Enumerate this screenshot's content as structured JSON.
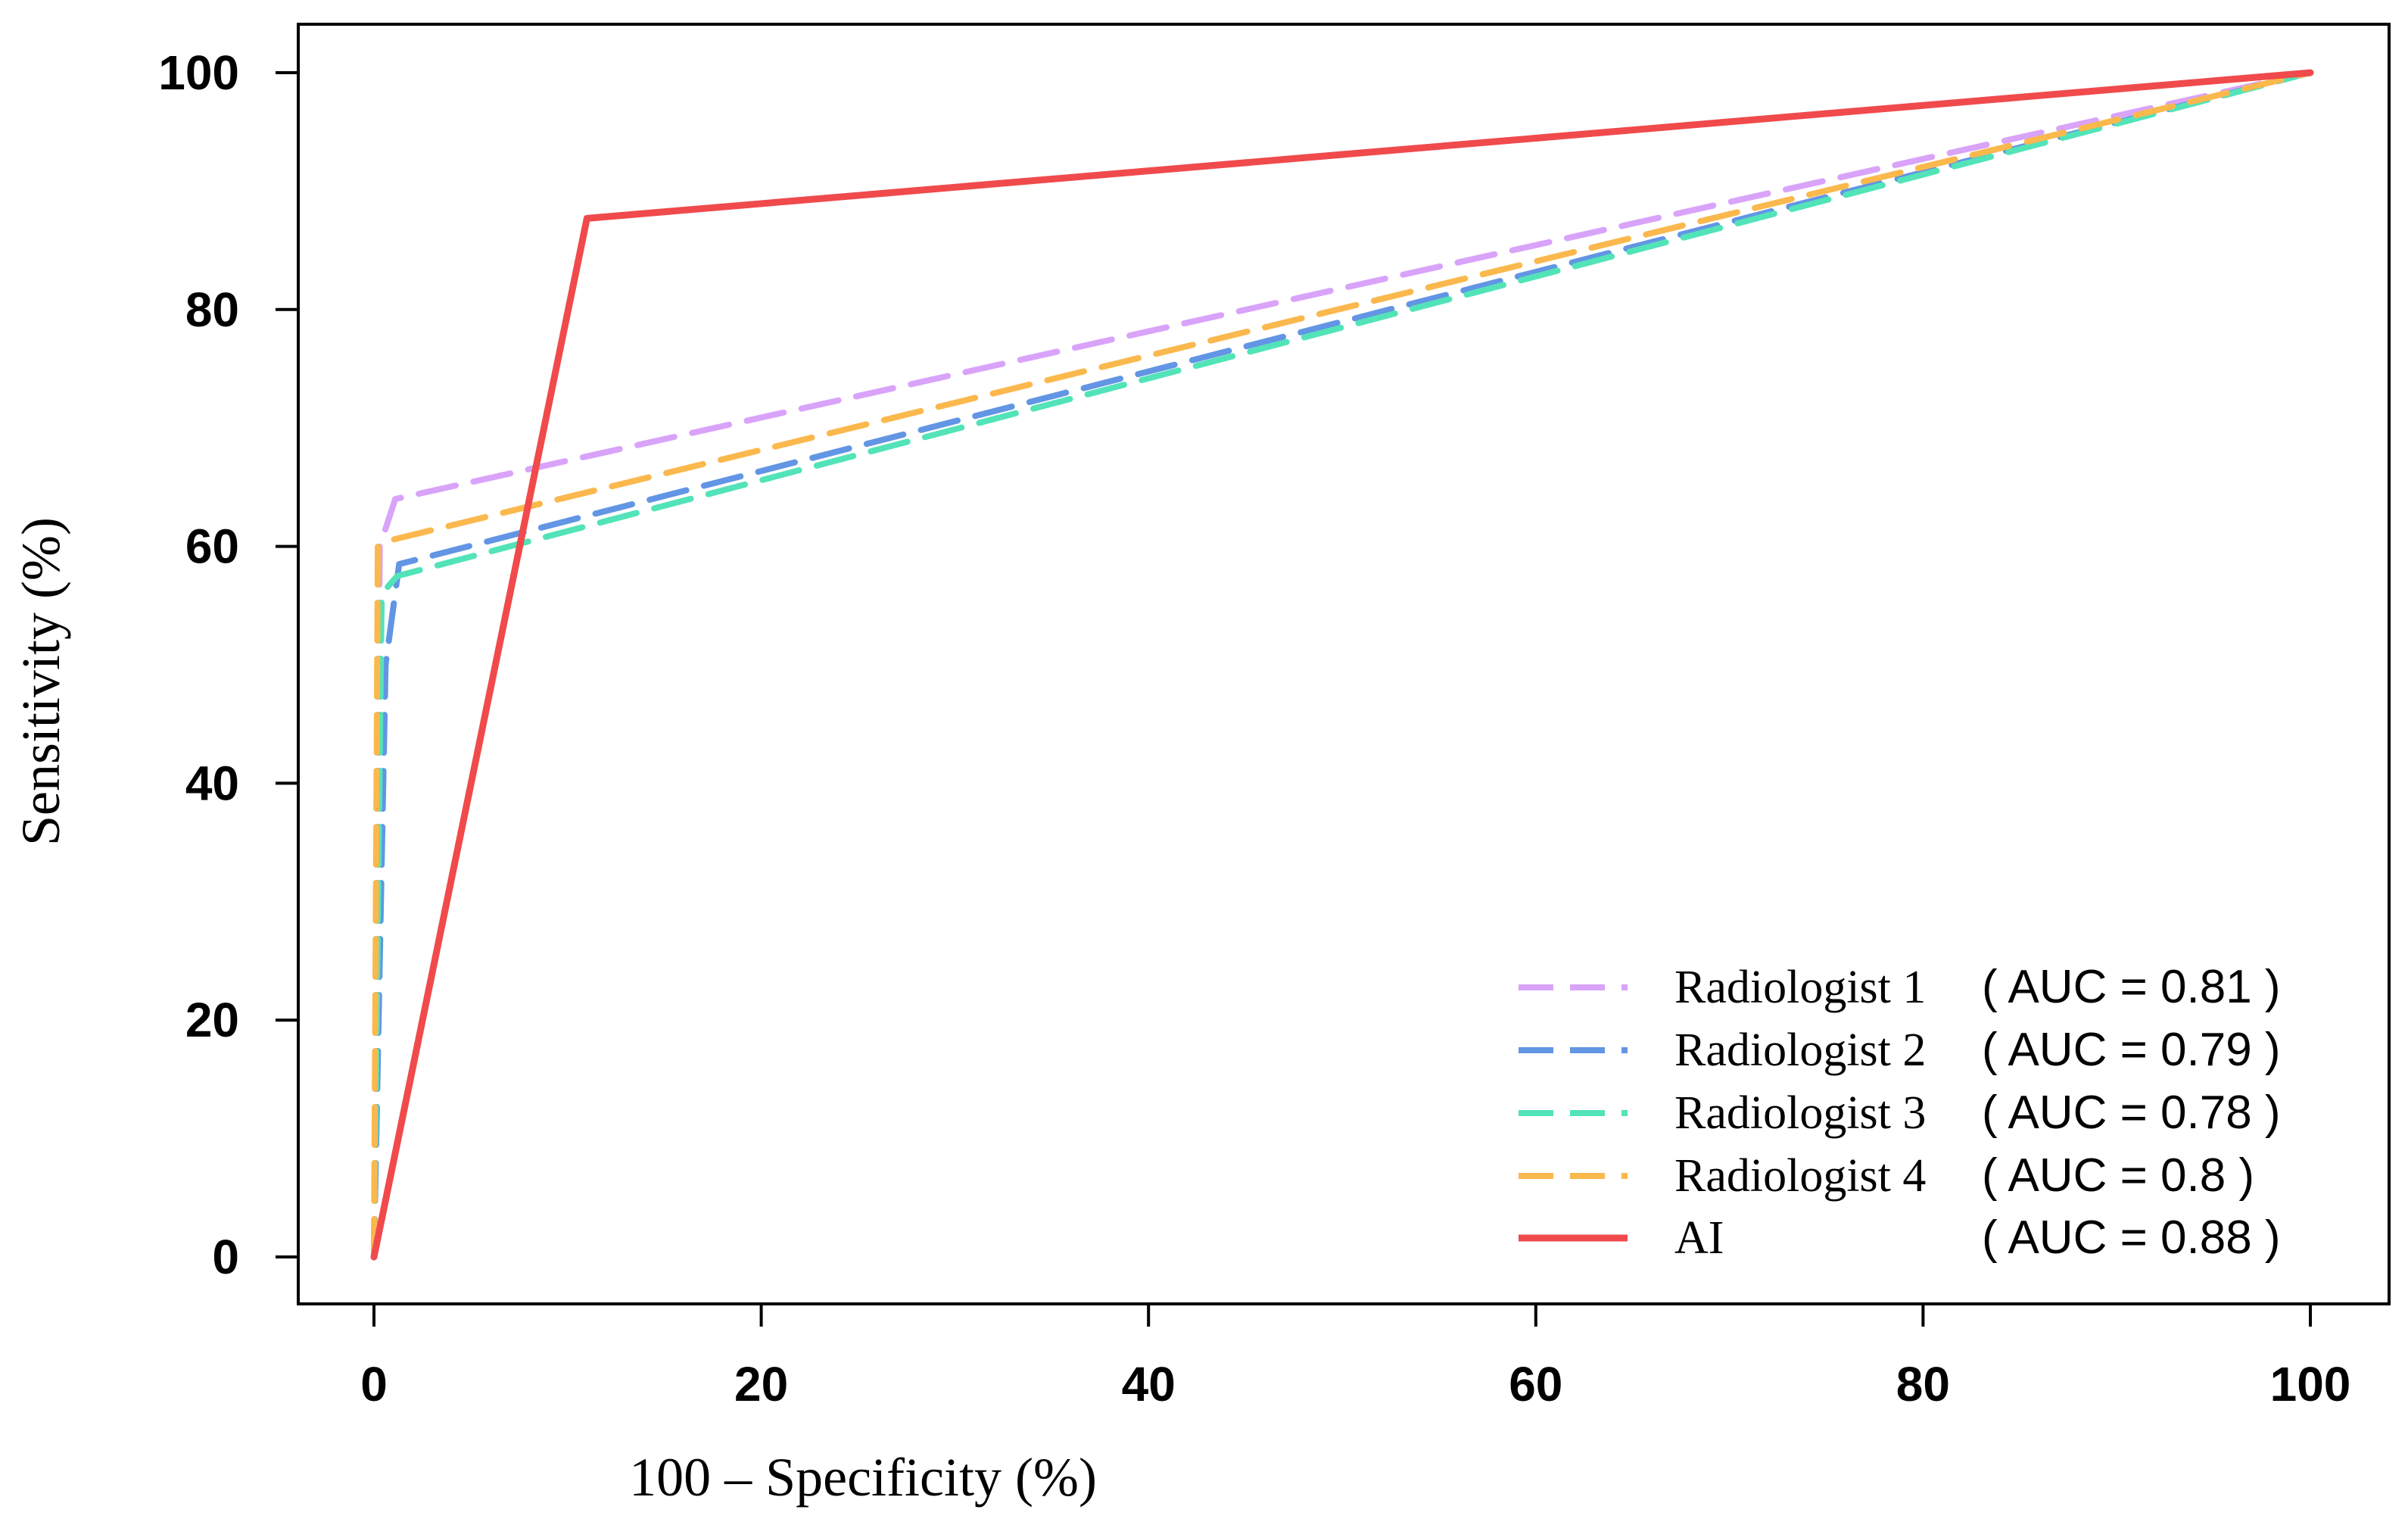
{
  "chart_data": {
    "type": "line",
    "title": "",
    "xlabel": "100 – Specificity (%)",
    "ylabel": "Sensitivity (%)",
    "xlim": [
      0,
      100
    ],
    "ylim": [
      0,
      100
    ],
    "xticks": [
      0,
      20,
      40,
      60,
      80,
      100
    ],
    "yticks": [
      0,
      20,
      40,
      60,
      80,
      100
    ],
    "grid": false,
    "legend_position": "bottom-right",
    "series": [
      {
        "name": "Radiologist 1",
        "auc_label": "( AUC = 0.81 )",
        "color": "#D9A3FA",
        "dash": "dashed",
        "x": [
          0,
          0.3,
          1.1,
          100
        ],
        "y": [
          0,
          60,
          64,
          100
        ]
      },
      {
        "name": "Radiologist 2",
        "auc_label": "( AUC = 0.79 )",
        "color": "#6295E4",
        "dash": "dashed",
        "x": [
          0,
          0.6,
          1.3,
          100
        ],
        "y": [
          0,
          50,
          58.5,
          100
        ]
      },
      {
        "name": "Radiologist 3",
        "auc_label": "( AUC = 0.78 )",
        "color": "#53E3B8",
        "dash": "dashed",
        "x": [
          0,
          0.4,
          1.2,
          100
        ],
        "y": [
          0,
          56,
          57.5,
          100
        ]
      },
      {
        "name": "Radiologist 4",
        "auc_label": "( AUC = 0.8 )",
        "color": "#FAB84D",
        "dash": "dashed",
        "x": [
          0,
          0.2,
          0.8,
          100
        ],
        "y": [
          0,
          60,
          60.5,
          100
        ]
      },
      {
        "name": "AI",
        "auc_label": "( AUC = 0.88 )",
        "color": "#F04A4C",
        "dash": "solid",
        "x": [
          0,
          11,
          100
        ],
        "y": [
          0,
          87.7,
          100
        ]
      }
    ]
  }
}
